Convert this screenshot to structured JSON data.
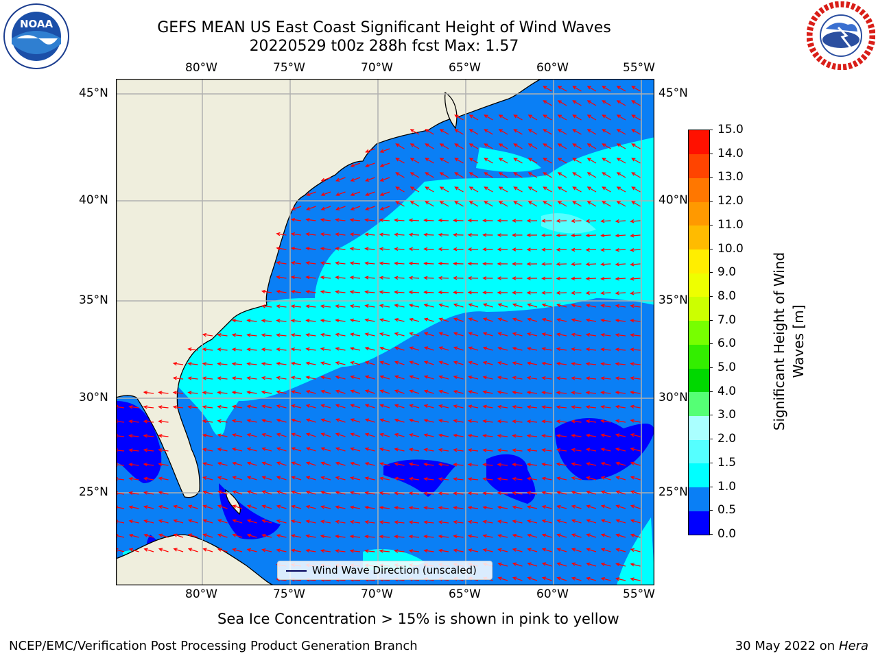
{
  "title": {
    "line1": "GEFS MEAN US East Coast Significant Height of Wind Waves",
    "line2": "20220529 t00z 288h fcst   Max: 1.57"
  },
  "map": {
    "lon_labels": [
      "80°W",
      "75°W",
      "70°W",
      "65°W",
      "60°W",
      "55°W"
    ],
    "lat_labels": [
      "45°N",
      "40°N",
      "35°N",
      "30°N",
      "25°N"
    ],
    "lon_range": [
      -85,
      -54
    ],
    "lat_range": [
      20.5,
      46
    ],
    "legend_label": "Wind Wave Direction (unscaled)",
    "arrow_color": "#ff0000",
    "land_color": "#efeedd",
    "grid_color": "#b0b0b0"
  },
  "colorbar": {
    "label": "Significant Height of Wind Waves [m]",
    "ticks": [
      "15.0",
      "14.0",
      "13.0",
      "12.0",
      "11.0",
      "10.0",
      "9.0",
      "8.0",
      "7.0",
      "6.0",
      "5.0",
      "4.0",
      "3.0",
      "2.0",
      "1.5",
      "1.0",
      "0.5",
      "0.0"
    ],
    "colors": [
      "#0000ff",
      "#0a7ff5",
      "#00ffff",
      "#55ffff",
      "#aaffff",
      "#55ff75",
      "#00d800",
      "#33ee00",
      "#77ff00",
      "#ccff00",
      "#eeff00",
      "#ffee00",
      "#ffbb00",
      "#ff9900",
      "#ff7700",
      "#ff4400",
      "#ff1100"
    ]
  },
  "icons": {
    "left_logo": "noaa-logo",
    "right_logo": "nws-logo"
  },
  "logo_text": {
    "noaa": "NOAA"
  },
  "footer": {
    "sea_ice": "Sea Ice Concentration > 15% is shown in pink to yellow",
    "left": "NCEP/EMC/Verification Post Processing Product Generation Branch",
    "date": "30 May 2022 on",
    "machine": "Hera"
  }
}
